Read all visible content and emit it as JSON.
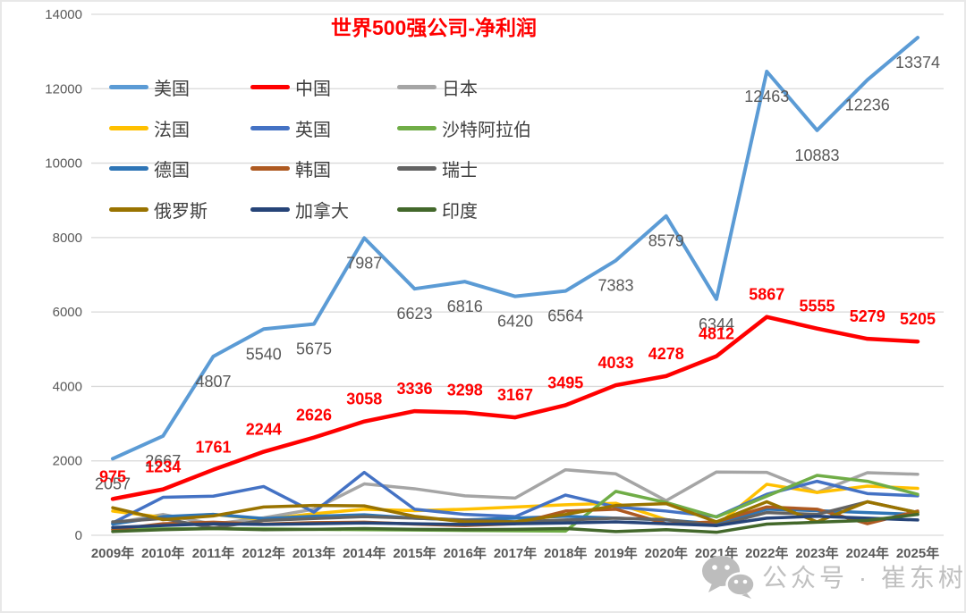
{
  "chart_title": "世界500强公司-净利润",
  "watermark": {
    "text": "公众号 · 崔东树"
  },
  "colors": {
    "title": "#FF0000",
    "axis_text": "#595959",
    "gridline": "#D9D9D9",
    "usa_label": "#595959",
    "china_label": "#FF0000",
    "watermark_text": "#C0C0C0"
  },
  "chart_data": {
    "type": "line",
    "title": "世界500强公司-净利润",
    "categories": [
      "2009年",
      "2010年",
      "2011年",
      "2012年",
      "2013年",
      "2014年",
      "2015年",
      "2016年",
      "2017年",
      "2018年",
      "2019年",
      "2020年",
      "2021年",
      "2022年",
      "2023年",
      "2024年",
      "2025年"
    ],
    "ylim": [
      0,
      14000
    ],
    "yticks": [
      0,
      2000,
      4000,
      6000,
      8000,
      10000,
      12000,
      14000
    ],
    "grid": true,
    "legend_position": "inside-top-left",
    "legend_columns": 3,
    "series": [
      {
        "id": "usa",
        "name": "美国",
        "color": "#5B9BD5",
        "line_width": 4,
        "data_labels": true,
        "label_color": "#595959",
        "values": [
          2057,
          2667,
          4807,
          5540,
          5675,
          7987,
          6623,
          6816,
          6420,
          6564,
          7383,
          8579,
          6344,
          12463,
          10883,
          12236,
          13374
        ]
      },
      {
        "id": "china",
        "name": "中国",
        "color": "#FF0000",
        "line_width": 4.5,
        "data_labels": true,
        "label_color": "#FF0000",
        "values": [
          975,
          1234,
          1761,
          2244,
          2626,
          3058,
          3336,
          3298,
          3167,
          3495,
          4033,
          4278,
          4812,
          5867,
          5555,
          5279,
          5205
        ]
      },
      {
        "id": "japan",
        "name": "日本",
        "color": "#A5A5A5",
        "line_width": 3.5,
        "data_labels": false,
        "values_estimated": true,
        "values": [
          320,
          560,
          300,
          470,
          700,
          1380,
          1250,
          1060,
          1000,
          1760,
          1650,
          930,
          1700,
          1690,
          1150,
          1680,
          1640
        ]
      },
      {
        "id": "france",
        "name": "法国",
        "color": "#FFC000",
        "line_width": 3.5,
        "data_labels": false,
        "values_estimated": true,
        "values": [
          650,
          480,
          560,
          420,
          580,
          700,
          660,
          700,
          760,
          820,
          860,
          420,
          260,
          1370,
          1150,
          1320,
          1260
        ]
      },
      {
        "id": "uk",
        "name": "英国",
        "color": "#4472C4",
        "line_width": 3.5,
        "data_labels": false,
        "values_estimated": true,
        "values": [
          330,
          1020,
          1050,
          1310,
          620,
          1690,
          700,
          560,
          500,
          1080,
          760,
          650,
          500,
          1100,
          1450,
          1120,
          1060
        ]
      },
      {
        "id": "saudi-arabia",
        "name": "沙特阿拉伯",
        "color": "#70AD47",
        "line_width": 3.5,
        "data_labels": false,
        "values_estimated": true,
        "values": [
          160,
          170,
          180,
          170,
          160,
          150,
          140,
          130,
          120,
          110,
          1180,
          880,
          490,
          1050,
          1610,
          1450,
          1100
        ]
      },
      {
        "id": "germany",
        "name": "德国",
        "color": "#2E75B6",
        "line_width": 3.5,
        "data_labels": false,
        "values_estimated": true,
        "values": [
          300,
          500,
          560,
          450,
          510,
          550,
          460,
          410,
          460,
          510,
          460,
          410,
          310,
          700,
          660,
          610,
          560
        ]
      },
      {
        "id": "south-korea",
        "name": "韩国",
        "color": "#AE5A21",
        "line_width": 3.5,
        "data_labels": false,
        "values_estimated": true,
        "values": [
          150,
          310,
          350,
          300,
          340,
          350,
          300,
          260,
          310,
          650,
          700,
          310,
          360,
          760,
          700,
          310,
          650
        ]
      },
      {
        "id": "switzerland",
        "name": "瑞士",
        "color": "#636363",
        "line_width": 3.5,
        "data_labels": false,
        "values_estimated": true,
        "values": [
          360,
          450,
          200,
          400,
          450,
          500,
          460,
          410,
          360,
          410,
          460,
          420,
          260,
          610,
          560,
          900,
          610
        ]
      },
      {
        "id": "russia",
        "name": "俄罗斯",
        "color": "#997300",
        "line_width": 3.5,
        "data_labels": false,
        "values_estimated": true,
        "values": [
          740,
          420,
          520,
          760,
          800,
          790,
          510,
          360,
          360,
          560,
          800,
          850,
          360,
          900,
          360,
          900,
          610
        ]
      },
      {
        "id": "canada",
        "name": "加拿大",
        "color": "#264478",
        "line_width": 3.5,
        "data_labels": false,
        "values_estimated": true,
        "values": [
          210,
          260,
          310,
          290,
          310,
          330,
          310,
          290,
          310,
          330,
          360,
          310,
          260,
          460,
          510,
          460,
          410
        ]
      },
      {
        "id": "india",
        "name": "印度",
        "color": "#43682B",
        "line_width": 3.5,
        "data_labels": false,
        "values_estimated": true,
        "values": [
          100,
          150,
          180,
          150,
          160,
          180,
          160,
          150,
          160,
          180,
          100,
          150,
          80,
          300,
          350,
          400,
          560
        ]
      }
    ]
  }
}
